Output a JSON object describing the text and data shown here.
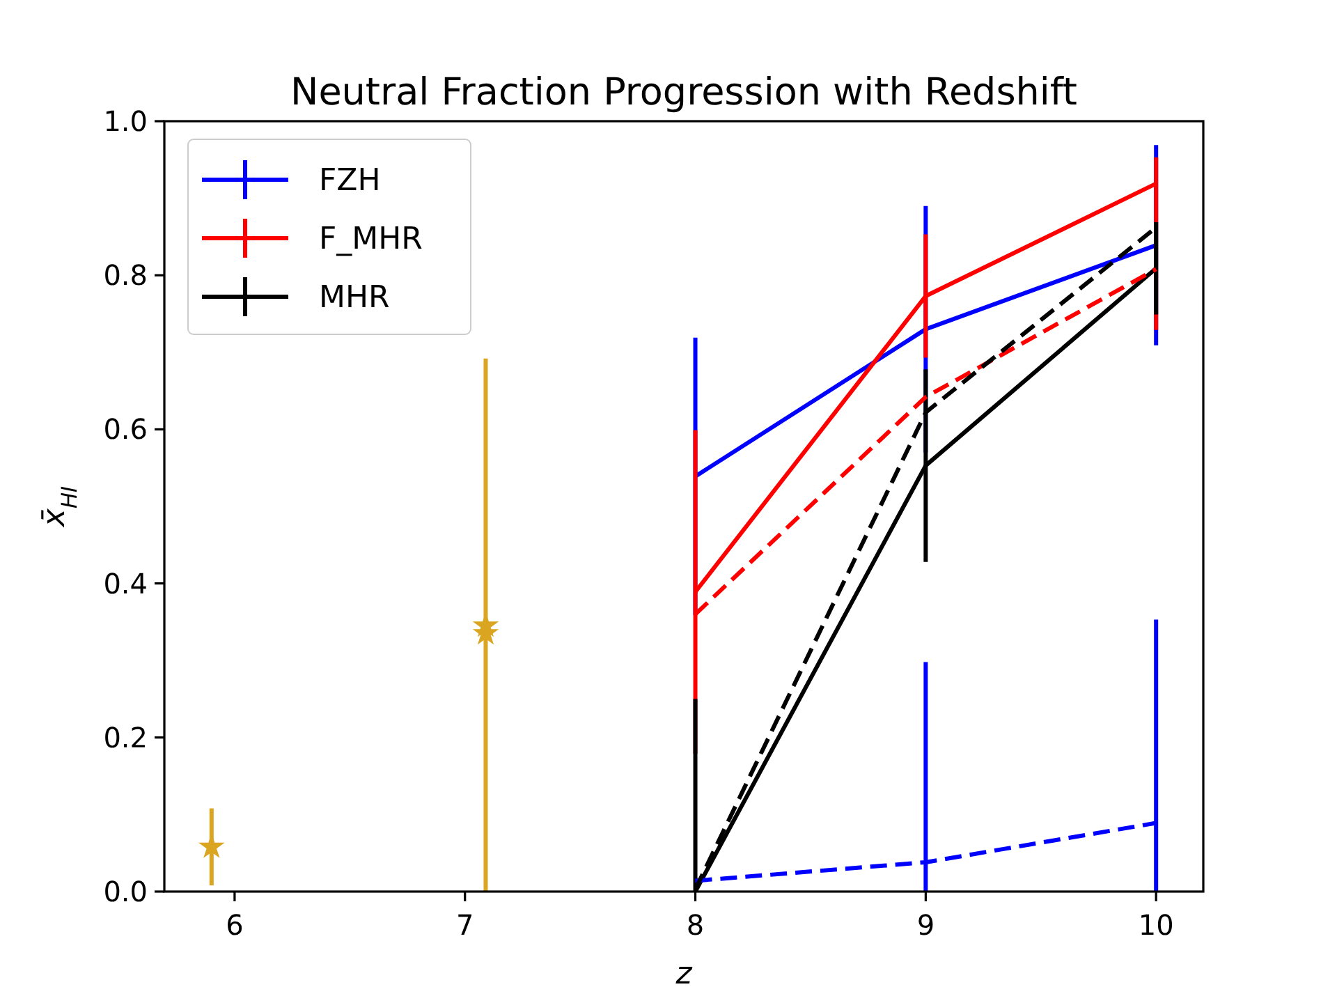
{
  "chart_data": {
    "type": "line",
    "title": "Neutral Fraction Progression with Redshift",
    "xlabel": "z",
    "ylabel": "x̄$_{HI}$",
    "xlim": [
      5.695,
      10.205
    ],
    "xticks": [
      6,
      7,
      8,
      9,
      10
    ],
    "ylim": [
      0,
      1
    ],
    "yticks": [
      {
        "value": 0,
        "label": "0.0"
      },
      {
        "value": 0.2,
        "label": "0.2"
      },
      {
        "value": 0.4,
        "label": "0.4"
      },
      {
        "value": 0.6,
        "label": "0.6"
      },
      {
        "value": 0.8,
        "label": "0.8"
      },
      {
        "value": 1,
        "label": "1.0"
      }
    ],
    "legend": "top left",
    "marker": "none",
    "grid": false,
    "series": [
      {
        "name": "FZH",
        "color": "#0000ff",
        "line_style": "solid",
        "x": [
          8,
          9,
          10
        ],
        "values": [
          0.539,
          0.73,
          0.839
        ],
        "errors": [
          0.18,
          0.16,
          0.13
        ]
      },
      {
        "name": "F_MHR",
        "color": "#ff0000",
        "line_style": "solid",
        "x": [
          8,
          9,
          10
        ],
        "values": [
          0.389,
          0.773,
          0.919
        ],
        "errors": [
          0.21,
          0.08,
          [
            0.729,
            0.953
          ]
        ]
      },
      {
        "name": "MHR",
        "color": "#000000",
        "line_style": "solid",
        "x": [
          8,
          9,
          10
        ],
        "values": [
          0.0,
          0.553,
          0.809
        ],
        "errors": [
          [
            0,
            0.25
          ],
          0.125,
          0.06
        ]
      },
      {
        "color": "#0000ff",
        "line_style": "dashed",
        "x": [
          8,
          9,
          10
        ],
        "values": [
          0.014,
          0.038,
          0.089
        ],
        "errors": [
          null,
          [
            0,
            0.298
          ],
          [
            0,
            0.353
          ]
        ]
      },
      {
        "color": "#ff0000",
        "line_style": "dashed",
        "x": [
          8,
          9,
          10
        ],
        "values": [
          0.36,
          0.642,
          0.808
        ]
      },
      {
        "color": "#000000",
        "line_style": "dashed",
        "x": [
          8,
          9,
          10
        ],
        "values": [
          0.003,
          0.622,
          0.862
        ]
      },
      {
        "type": "scatter",
        "marker": "star",
        "color": "#daa520",
        "x": [
          5.9,
          7.09,
          7.09
        ],
        "values": [
          0.058,
          0.345,
          0.335
        ],
        "errors": [
          0.05,
          [
            0,
            0.692
          ],
          null
        ]
      }
    ]
  }
}
